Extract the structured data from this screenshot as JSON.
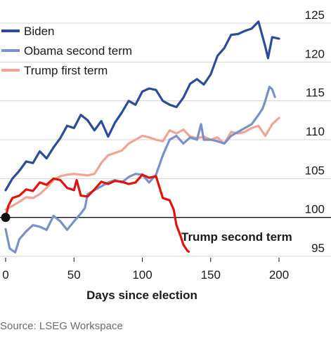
{
  "chart_data": {
    "type": "line",
    "xlabel": "Days since election",
    "ylabel": "",
    "xlim": [
      0,
      200
    ],
    "ylim": [
      95,
      125
    ],
    "xticks": [
      0,
      50,
      100,
      150,
      200
    ],
    "yticks": [
      95,
      100,
      105,
      110,
      115,
      120,
      125
    ],
    "baseline": 100,
    "annotation": "Trump second term",
    "legend_placement": "top-left",
    "series": [
      {
        "name": "Biden",
        "color": "#2b4c9b",
        "points": [
          [
            0,
            103.5
          ],
          [
            5,
            105
          ],
          [
            10,
            106
          ],
          [
            15,
            107.2
          ],
          [
            20,
            107
          ],
          [
            25,
            108.5
          ],
          [
            30,
            107.6
          ],
          [
            35,
            109
          ],
          [
            40,
            110.2
          ],
          [
            45,
            111.8
          ],
          [
            50,
            111.5
          ],
          [
            55,
            113.2
          ],
          [
            60,
            112.5
          ],
          [
            65,
            111.2
          ],
          [
            70,
            112.4
          ],
          [
            75,
            110.4
          ],
          [
            80,
            112.2
          ],
          [
            85,
            113.5
          ],
          [
            90,
            115
          ],
          [
            95,
            114.5
          ],
          [
            100,
            116.2
          ],
          [
            105,
            116.6
          ],
          [
            110,
            116.4
          ],
          [
            115,
            115
          ],
          [
            120,
            114.5
          ],
          [
            125,
            114.2
          ],
          [
            130,
            115.4
          ],
          [
            135,
            117.2
          ],
          [
            140,
            117.8
          ],
          [
            145,
            117.1
          ],
          [
            150,
            118.4
          ],
          [
            155,
            120.8
          ],
          [
            160,
            121.8
          ],
          [
            165,
            123.5
          ],
          [
            170,
            123.6
          ],
          [
            175,
            124
          ],
          [
            180,
            124.3
          ],
          [
            185,
            125.2
          ],
          [
            190,
            122
          ],
          [
            192,
            120.5
          ],
          [
            195,
            123.2
          ],
          [
            200,
            123
          ]
        ]
      },
      {
        "name": "Obama second term",
        "color": "#7990c8",
        "points": [
          [
            0,
            98.5
          ],
          [
            3,
            96
          ],
          [
            7,
            95.5
          ],
          [
            10,
            97.2
          ],
          [
            15,
            98.2
          ],
          [
            20,
            99
          ],
          [
            25,
            98.8
          ],
          [
            30,
            98.4
          ],
          [
            35,
            100.2
          ],
          [
            40,
            99.5
          ],
          [
            45,
            98.4
          ],
          [
            50,
            99.5
          ],
          [
            55,
            100.5
          ],
          [
            58,
            101.2
          ],
          [
            60,
            103
          ],
          [
            65,
            103.5
          ],
          [
            70,
            104
          ],
          [
            75,
            104.5
          ],
          [
            80,
            104.8
          ],
          [
            85,
            104.5
          ],
          [
            90,
            105.2
          ],
          [
            95,
            105.6
          ],
          [
            100,
            105.5
          ],
          [
            105,
            104.5
          ],
          [
            110,
            105.5
          ],
          [
            115,
            108
          ],
          [
            120,
            110
          ],
          [
            125,
            110.5
          ],
          [
            130,
            109.5
          ],
          [
            135,
            110.3
          ],
          [
            140,
            110
          ],
          [
            143,
            112
          ],
          [
            145,
            110
          ],
          [
            150,
            110
          ],
          [
            155,
            109.8
          ],
          [
            160,
            109.5
          ],
          [
            165,
            110.5
          ],
          [
            170,
            111
          ],
          [
            175,
            111.5
          ],
          [
            180,
            112
          ],
          [
            185,
            113.2
          ],
          [
            188,
            114
          ],
          [
            190,
            115
          ],
          [
            193,
            116.8
          ],
          [
            195,
            116.5
          ],
          [
            197,
            115.5
          ]
        ]
      },
      {
        "name": "Trump first term",
        "color": "#f4a293",
        "points": [
          [
            0,
            101
          ],
          [
            5,
            101.5
          ],
          [
            10,
            102
          ],
          [
            15,
            102.6
          ],
          [
            20,
            102.5
          ],
          [
            25,
            103
          ],
          [
            30,
            103.8
          ],
          [
            35,
            104.8
          ],
          [
            40,
            105.3
          ],
          [
            45,
            105.5
          ],
          [
            50,
            105.6
          ],
          [
            55,
            105.5
          ],
          [
            60,
            105.4
          ],
          [
            65,
            105.6
          ],
          [
            70,
            107
          ],
          [
            75,
            108
          ],
          [
            80,
            108.3
          ],
          [
            85,
            108.6
          ],
          [
            90,
            109.5
          ],
          [
            95,
            110
          ],
          [
            100,
            110.5
          ],
          [
            105,
            110.3
          ],
          [
            110,
            110
          ],
          [
            115,
            109.8
          ],
          [
            120,
            111.2
          ],
          [
            125,
            110.8
          ],
          [
            130,
            111.3
          ],
          [
            135,
            110.4
          ],
          [
            140,
            110.2
          ],
          [
            145,
            110.4
          ],
          [
            150,
            110
          ],
          [
            155,
            110.3
          ],
          [
            160,
            109.5
          ],
          [
            165,
            111
          ],
          [
            170,
            110.8
          ],
          [
            175,
            111
          ],
          [
            180,
            111.5
          ],
          [
            185,
            111.8
          ],
          [
            190,
            110.5
          ],
          [
            195,
            112
          ],
          [
            200,
            112.8
          ]
        ]
      },
      {
        "name": "Trump second term",
        "color": "#e3120b",
        "points": [
          [
            0,
            100
          ],
          [
            2,
            101.5
          ],
          [
            5,
            102.5
          ],
          [
            10,
            102.8
          ],
          [
            15,
            103.6
          ],
          [
            20,
            103.4
          ],
          [
            25,
            104.5
          ],
          [
            30,
            104.2
          ],
          [
            35,
            105
          ],
          [
            40,
            104.8
          ],
          [
            45,
            103.8
          ],
          [
            50,
            103.5
          ],
          [
            52,
            104.8
          ],
          [
            55,
            102.8
          ],
          [
            60,
            102.7
          ],
          [
            65,
            103.6
          ],
          [
            70,
            104.6
          ],
          [
            75,
            104.3
          ],
          [
            80,
            104.7
          ],
          [
            85,
            104.6
          ],
          [
            90,
            104.3
          ],
          [
            95,
            104.5
          ],
          [
            100,
            105.5
          ],
          [
            105,
            105.1
          ],
          [
            110,
            105.3
          ],
          [
            115,
            102.5
          ],
          [
            120,
            102.2
          ],
          [
            123,
            101
          ],
          [
            125,
            99
          ],
          [
            128,
            97.6
          ],
          [
            130,
            96.5
          ],
          [
            133,
            95.7
          ],
          [
            134,
            95.6
          ]
        ]
      }
    ]
  },
  "footer": {
    "source": "Source: LSEG Workspace"
  }
}
